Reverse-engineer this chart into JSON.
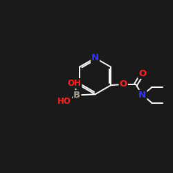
{
  "background_color": "#1a1a1a",
  "bond_color": "#ffffff",
  "atom_colors": {
    "N": "#3333ff",
    "O": "#ff2020",
    "B": "#b0a090",
    "C": "#ffffff"
  },
  "figsize": [
    2.5,
    2.5
  ],
  "dpi": 100,
  "lw": 1.4,
  "fs": 9.5,
  "fs_small": 8.5
}
